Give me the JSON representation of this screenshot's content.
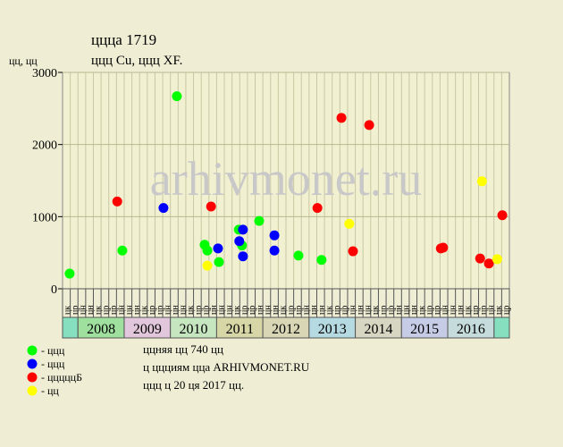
{
  "chart_data": {
    "type": "scatter",
    "title": "ццца 1719",
    "subtitle": "ццц Cu, ццц XF.",
    "y_label": "цц, цц",
    "watermark": "arhivmonet.ru",
    "notes": [
      "ццняя цц 740 цц",
      "ц ццциям цца ARHIVMONET.RU",
      "ццц ц 20 ця 2017 цц."
    ],
    "xlim": [
      2007.667,
      2017.333
    ],
    "ylim": [
      0,
      3000
    ],
    "yticks": [
      0,
      1000,
      2000,
      3000
    ],
    "grid": true,
    "years": [
      "2008",
      "2009",
      "2010",
      "2011",
      "2012",
      "2013",
      "2014",
      "2015",
      "2016"
    ],
    "year_colors": [
      "#9fe09f",
      "#e2c6dc",
      "#c6e6c0",
      "#d6d6a6",
      "#d8d6b4",
      "#b6dae2",
      "#d6d6c2",
      "#c6cce6",
      "#c6dcdc"
    ],
    "edge_color": "#86e0c0",
    "months": [
      "цк",
      "цр",
      "цн",
      "цн",
      "цк",
      "цр",
      "цр",
      "цн",
      "цн",
      "цн",
      "цк",
      "цр",
      "цр",
      "цн",
      "цн",
      "цн",
      "цк",
      "цр",
      "цр",
      "цн",
      "цн",
      "цн",
      "цк",
      "цр",
      "цр",
      "цн",
      "цн",
      "цн",
      "цк",
      "цр",
      "цр",
      "цн",
      "цн",
      "цн",
      "цк",
      "цр",
      "цр",
      "цн",
      "цн",
      "цн",
      "цк",
      "цр",
      "цр",
      "цн",
      "цн",
      "цн",
      "цк",
      "цр",
      "цр",
      "цн",
      "цн",
      "цн",
      "цк",
      "цр",
      "цр",
      "цн",
      "цк",
      "цр"
    ],
    "series": [
      {
        "name": "- ццц",
        "color": "#00ff00",
        "x": [
          2007.82,
          2008.96,
          2010.14,
          2010.74,
          2010.8,
          2011.05,
          2011.48,
          2011.55,
          2011.92,
          2012.77,
          2013.27
        ],
        "values": [
          210,
          530,
          2670,
          610,
          530,
          370,
          820,
          600,
          940,
          460,
          400
        ]
      },
      {
        "name": "- ццц",
        "color": "#0000ff",
        "x": [
          2009.85,
          2011.03,
          2011.49,
          2011.57,
          2011.57,
          2012.25,
          2012.25
        ],
        "values": [
          1120,
          560,
          660,
          820,
          450,
          740,
          530
        ]
      },
      {
        "name": "- цццццБ",
        "color": "#ff0000",
        "x": [
          2008.85,
          2010.88,
          2013.18,
          2013.7,
          2013.95,
          2014.3,
          2015.85,
          2015.9,
          2016.7,
          2016.89,
          2017.18
        ],
        "values": [
          1210,
          1140,
          1120,
          2370,
          520,
          2270,
          560,
          570,
          420,
          350,
          1020
        ]
      },
      {
        "name": "- цц",
        "color": "#ffff00",
        "x": [
          2010.8,
          2013.87,
          2016.74,
          2017.07
        ],
        "values": [
          320,
          900,
          1490,
          410
        ]
      }
    ]
  }
}
